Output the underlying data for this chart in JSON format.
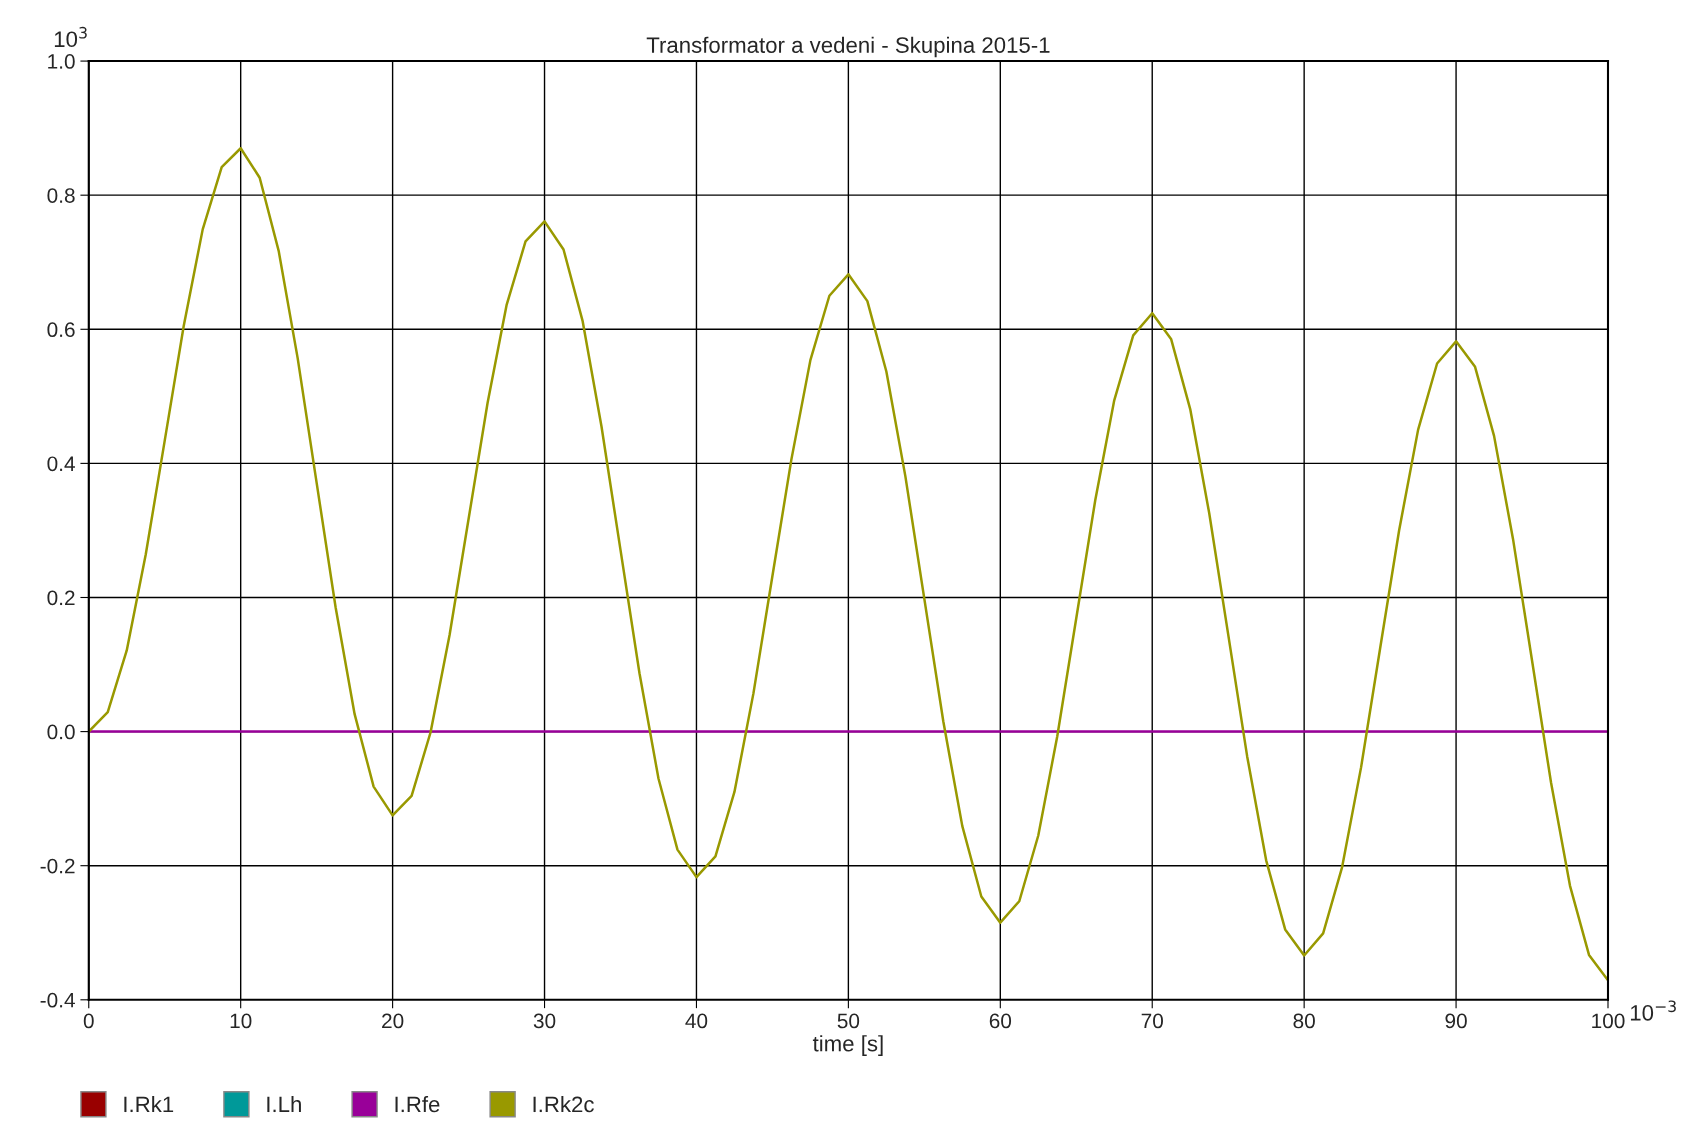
{
  "chart_data": {
    "type": "line",
    "title": "Transformator a vedeni - Skupina 2015-1",
    "xlabel": "time [s]",
    "annotations": [
      "10$^{3}$",
      "10$^{−3}$"
    ],
    "x": [
      0,
      1.25,
      2.5,
      3.75,
      5,
      6.25,
      7.5,
      8.75,
      10,
      11.25,
      12.5,
      13.75,
      15,
      16.25,
      17.5,
      18.75,
      20,
      21.25,
      22.5,
      23.75,
      25,
      26.25,
      27.5,
      28.75,
      30,
      31.25,
      32.5,
      33.75,
      35,
      36.25,
      37.5,
      38.75,
      40,
      41.25,
      42.5,
      43.75,
      45,
      46.25,
      47.5,
      48.75,
      50,
      51.25,
      52.5,
      53.75,
      55,
      56.25,
      57.5,
      58.75,
      60,
      61.25,
      62.5,
      63.75,
      65,
      66.25,
      67.5,
      68.75,
      70,
      71.25,
      72.5,
      73.75,
      75,
      76.25,
      77.5,
      78.75,
      80,
      81.25,
      82.5,
      83.75,
      85,
      86.25,
      87.5,
      88.75,
      90,
      91.25,
      92.5,
      93.75,
      95,
      96.25,
      97.5,
      98.75,
      100
    ],
    "series": [
      {
        "name": "I.Rk1",
        "color": "#990000",
        "values": [
          null,
          null,
          null,
          null,
          null,
          null,
          null,
          null,
          null,
          null,
          null,
          null,
          null,
          null,
          null,
          null,
          null,
          null,
          null,
          null,
          null,
          null,
          null,
          null,
          null,
          null,
          null,
          null,
          null,
          null,
          null,
          null,
          null,
          null,
          null,
          null,
          null,
          null,
          null,
          null,
          null,
          null,
          null,
          null,
          null,
          null,
          null,
          null,
          null,
          null,
          null,
          null,
          null,
          null,
          null,
          null,
          null,
          null,
          null,
          null,
          null,
          null,
          null,
          null,
          null,
          null,
          null,
          null,
          null,
          null,
          null,
          null,
          null,
          null,
          null,
          null,
          null,
          null,
          null,
          null,
          null
        ]
      },
      {
        "name": "I.Lh",
        "color": "#009999",
        "values": [
          null,
          null,
          null,
          null,
          null,
          null,
          null,
          null,
          null,
          null,
          null,
          null,
          null,
          null,
          null,
          null,
          null,
          null,
          null,
          null,
          null,
          null,
          null,
          null,
          null,
          null,
          null,
          null,
          null,
          null,
          null,
          null,
          null,
          null,
          null,
          null,
          null,
          null,
          null,
          null,
          null,
          null,
          null,
          null,
          null,
          null,
          null,
          null,
          null,
          null,
          null,
          null,
          null,
          null,
          null,
          null,
          null,
          null,
          null,
          null,
          null,
          null,
          null,
          null,
          null,
          null,
          null,
          null,
          null,
          null,
          null,
          null,
          null,
          null,
          null,
          null,
          null,
          null,
          null,
          null,
          null
        ]
      },
      {
        "name": "I.Rfe",
        "color": "#990099",
        "x": [
          0,
          100
        ],
        "values": [
          0,
          0
        ]
      },
      {
        "name": "I.Rk2c",
        "color": "#999900",
        "values": [
          0,
          0.029,
          0.121,
          0.264,
          0.434,
          0.605,
          0.749,
          0.842,
          0.87,
          0.826,
          0.717,
          0.557,
          0.371,
          0.185,
          0.026,
          -0.082,
          -0.125,
          -0.096,
          -0.001,
          0.144,
          0.317,
          0.49,
          0.636,
          0.731,
          0.761,
          0.719,
          0.613,
          0.455,
          0.271,
          0.087,
          -0.07,
          -0.176,
          -0.217,
          -0.186,
          -0.09,
          0.057,
          0.232,
          0.406,
          0.554,
          0.65,
          0.682,
          0.642,
          0.537,
          0.381,
          0.198,
          0.015,
          -0.141,
          -0.246,
          -0.285,
          -0.253,
          -0.155,
          -0.007,
          0.169,
          0.345,
          0.494,
          0.591,
          0.624,
          0.585,
          0.481,
          0.326,
          0.145,
          -0.037,
          -0.192,
          -0.295,
          -0.334,
          -0.301,
          -0.202,
          -0.053,
          0.124,
          0.3,
          0.45,
          0.549,
          0.582,
          0.544,
          0.441,
          0.287,
          0.106,
          -0.076,
          -0.23,
          -0.333,
          -0.371
        ]
      }
    ],
    "xlim": [
      0,
      100
    ],
    "xticks": [
      0,
      10,
      20,
      30,
      40,
      50,
      60,
      70,
      80,
      90,
      100
    ],
    "ylim": [
      -0.4,
      1.0
    ],
    "yticks": [
      -0.4,
      -0.2,
      {
        "value": 0,
        "label": "0.0"
      },
      0.2,
      0.4,
      0.6,
      0.8,
      {
        "value": 1.0,
        "label": "1.0"
      }
    ],
    "grid": true,
    "legend": "bottom left",
    "marker": "none",
    "line_style": "solid"
  }
}
